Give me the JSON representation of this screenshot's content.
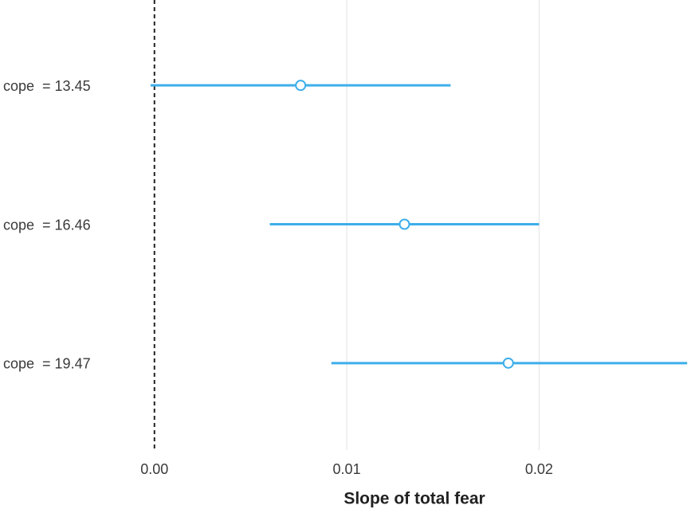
{
  "chart_data": {
    "type": "forest",
    "categories": [
      "cope  = 13.45",
      "cope  = 16.46",
      "cope  = 19.47"
    ],
    "values": [
      0.0076,
      0.013,
      0.0184
    ],
    "lower": [
      -0.0002,
      0.006,
      0.0092
    ],
    "upper": [
      0.0154,
      0.02,
      0.0277
    ],
    "color": "#3daeea",
    "xlim": [
      -0.0014,
      0.0279
    ],
    "xticks": [
      {
        "value": 0,
        "label": "0.00"
      },
      0.01,
      0.02
    ],
    "reference_line": 0,
    "grid": true,
    "xlabel": "Slope of total  fear"
  }
}
